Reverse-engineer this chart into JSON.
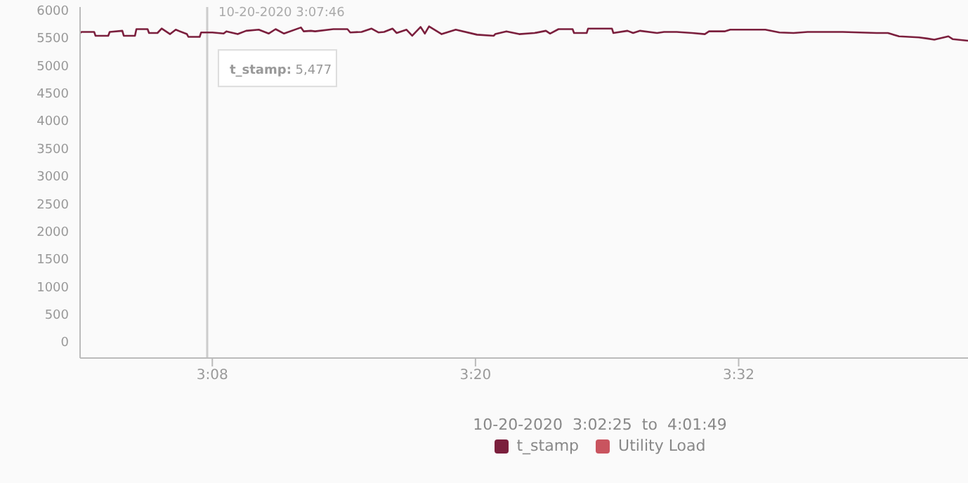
{
  "chart_data": {
    "type": "line",
    "x": [
      3.0328,
      3.0339,
      3.0435,
      3.0445,
      3.0542,
      3.0553,
      3.0649,
      3.066,
      3.0745,
      3.0756,
      3.0841,
      3.0852,
      3.0916,
      3.0948,
      3.1012,
      3.1055,
      3.114,
      3.1151,
      3.1237,
      3.1248,
      3.1333,
      3.1419,
      3.144,
      3.1526,
      3.159,
      3.1686,
      3.1761,
      3.1814,
      3.1878,
      3.2007,
      3.2028,
      3.2082,
      3.2114,
      3.2253,
      3.236,
      3.2381,
      3.2467,
      3.2542,
      3.2595,
      3.2638,
      3.2702,
      3.2734,
      3.2809,
      3.2852,
      3.2916,
      3.2948,
      3.298,
      3.3076,
      3.3183,
      3.3344,
      3.3472,
      3.3483,
      3.3568,
      3.3665,
      3.3782,
      3.3868,
      3.39,
      3.3964,
      3.4071,
      3.4082,
      3.4178,
      3.4189,
      3.437,
      3.4381,
      3.4488,
      3.4531,
      3.4584,
      3.4713,
      3.4766,
      3.4862,
      3.498,
      3.5076,
      3.5108,
      3.5226,
      3.5269,
      3.5536,
      3.5643,
      3.575,
      3.5857,
      3.6124,
      3.6381,
      3.6467,
      3.6552,
      3.6702,
      3.6766,
      3.682,
      3.6927,
      3.6959,
      3.7076
    ],
    "series": [
      {
        "name": "t_stamp",
        "color": "#7b1f3d",
        "values": [
          5580,
          5600,
          5600,
          5530,
          5530,
          5600,
          5620,
          5530,
          5530,
          5650,
          5650,
          5580,
          5580,
          5660,
          5560,
          5640,
          5560,
          5510,
          5510,
          5590,
          5590,
          5570,
          5610,
          5560,
          5620,
          5640,
          5570,
          5650,
          5570,
          5680,
          5610,
          5620,
          5610,
          5650,
          5650,
          5590,
          5600,
          5660,
          5590,
          5600,
          5660,
          5580,
          5640,
          5530,
          5690,
          5570,
          5700,
          5560,
          5640,
          5550,
          5530,
          5560,
          5610,
          5560,
          5580,
          5620,
          5570,
          5650,
          5650,
          5580,
          5580,
          5660,
          5660,
          5580,
          5620,
          5580,
          5620,
          5580,
          5600,
          5600,
          5580,
          5560,
          5610,
          5610,
          5640,
          5640,
          5590,
          5580,
          5600,
          5600,
          5580,
          5580,
          5520,
          5500,
          5480,
          5460,
          5520,
          5470,
          5440
        ]
      },
      {
        "name": "Utility Load",
        "color": "#c9545f",
        "values": [
          null,
          null,
          null,
          null,
          null,
          null,
          null,
          null,
          null,
          null,
          null,
          null,
          null,
          null,
          null,
          null,
          null,
          null,
          null,
          null,
          null,
          null,
          null,
          null,
          null,
          null,
          null,
          null,
          null,
          null,
          null,
          null,
          null,
          null,
          null,
          null,
          null,
          null,
          null,
          null,
          null,
          null,
          null,
          null,
          null,
          null,
          null,
          null,
          null,
          null,
          null,
          null,
          null,
          null,
          null,
          null,
          null,
          null,
          null,
          null,
          null,
          null,
          null,
          null,
          null,
          null,
          null,
          null,
          null,
          null,
          null,
          null,
          null,
          null,
          null,
          null,
          null,
          null,
          null,
          null,
          null,
          null,
          null,
          null,
          null,
          null,
          null,
          null,
          null
        ]
      }
    ],
    "xlim": [
      3.0328,
      3.7076
    ],
    "xticks": [
      {
        "value": 3.1333,
        "label": "3:08"
      },
      {
        "value": 3.3333,
        "label": "3:20"
      },
      {
        "value": 3.5333,
        "label": "3:32"
      }
    ],
    "ylim": [
      -300,
      6050
    ],
    "yticks": [
      0,
      500,
      1000,
      1500,
      2000,
      2500,
      3000,
      3500,
      4000,
      4500,
      5000,
      5500,
      6000
    ],
    "ref_lines": [
      {
        "axis": "x",
        "value": 3.1294,
        "label": "10-20-2020 3:07:46",
        "color": "#cccccc"
      }
    ],
    "annotations": [
      {
        "text": "t_stamp: 5,477",
        "x": 3.1294,
        "y": 5477
      },
      "10-20-2020  3:02:25  to  4:01:49"
    ],
    "legend": "bottom",
    "grid": false,
    "marker": "none",
    "line_style": "solid"
  }
}
